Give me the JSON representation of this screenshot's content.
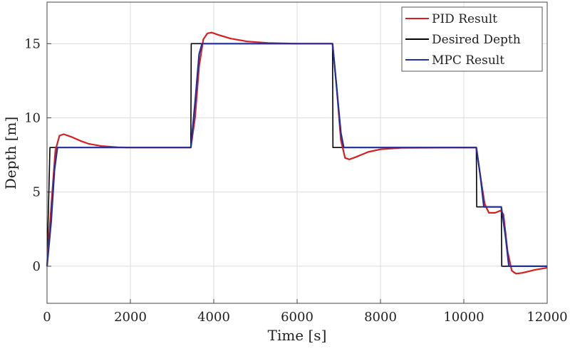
{
  "chart_data": {
    "type": "line",
    "title": "",
    "xlabel": "Time [s]",
    "ylabel": "Depth [m]",
    "xlim": [
      0,
      12000
    ],
    "ylim": [
      -2.5,
      17.8
    ],
    "xticks": [
      0,
      2000,
      4000,
      6000,
      8000,
      10000,
      12000
    ],
    "yticks": [
      0,
      5,
      10,
      15
    ],
    "xtick_labels": [
      "0",
      "2000",
      "4000",
      "6000",
      "8000",
      "10000",
      "12000"
    ],
    "ytick_labels": [
      "0",
      "5",
      "10",
      "15"
    ],
    "grid": true,
    "legend_position": "top-right",
    "series": [
      {
        "name": "PID Result",
        "color": "#d42020",
        "points": [
          [
            0,
            0
          ],
          [
            100,
            4
          ],
          [
            200,
            7.8
          ],
          [
            300,
            8.8
          ],
          [
            400,
            8.9
          ],
          [
            600,
            8.7
          ],
          [
            800,
            8.45
          ],
          [
            1000,
            8.25
          ],
          [
            1300,
            8.1
          ],
          [
            1700,
            8.02
          ],
          [
            2000,
            8
          ],
          [
            3450,
            8
          ],
          [
            3550,
            10
          ],
          [
            3650,
            13.5
          ],
          [
            3750,
            15.3
          ],
          [
            3850,
            15.7
          ],
          [
            3950,
            15.75
          ],
          [
            4100,
            15.6
          ],
          [
            4400,
            15.35
          ],
          [
            4800,
            15.15
          ],
          [
            5300,
            15.05
          ],
          [
            6000,
            15
          ],
          [
            6850,
            15
          ],
          [
            6950,
            12
          ],
          [
            7050,
            8.5
          ],
          [
            7150,
            7.3
          ],
          [
            7250,
            7.2
          ],
          [
            7400,
            7.35
          ],
          [
            7700,
            7.7
          ],
          [
            8000,
            7.88
          ],
          [
            8500,
            7.98
          ],
          [
            10300,
            8
          ],
          [
            10400,
            6
          ],
          [
            10500,
            4.2
          ],
          [
            10600,
            3.6
          ],
          [
            10750,
            3.6
          ],
          [
            10880,
            3.75
          ],
          [
            10950,
            3.5
          ],
          [
            11050,
            1
          ],
          [
            11150,
            -0.3
          ],
          [
            11250,
            -0.5
          ],
          [
            11400,
            -0.45
          ],
          [
            11700,
            -0.25
          ],
          [
            12000,
            -0.1
          ]
        ]
      },
      {
        "name": "Desired Depth",
        "color": "#000000",
        "points": [
          [
            0,
            0
          ],
          [
            70,
            8
          ],
          [
            3450,
            8
          ],
          [
            3460,
            15
          ],
          [
            6850,
            15
          ],
          [
            6860,
            8
          ],
          [
            10300,
            8
          ],
          [
            10310,
            4
          ],
          [
            10900,
            4
          ],
          [
            10910,
            0
          ],
          [
            12000,
            0
          ]
        ]
      },
      {
        "name": "MPC Result",
        "color": "#1f2fa0",
        "points": [
          [
            0,
            0
          ],
          [
            100,
            3
          ],
          [
            180,
            6.5
          ],
          [
            250,
            8
          ],
          [
            3450,
            8
          ],
          [
            3550,
            11
          ],
          [
            3650,
            14.3
          ],
          [
            3720,
            15
          ],
          [
            6850,
            15
          ],
          [
            6950,
            12
          ],
          [
            7050,
            9
          ],
          [
            7120,
            8
          ],
          [
            10300,
            8
          ],
          [
            10400,
            6
          ],
          [
            10480,
            4
          ],
          [
            10900,
            4
          ],
          [
            11000,
            2
          ],
          [
            11080,
            0
          ],
          [
            12000,
            0
          ]
        ]
      }
    ]
  }
}
